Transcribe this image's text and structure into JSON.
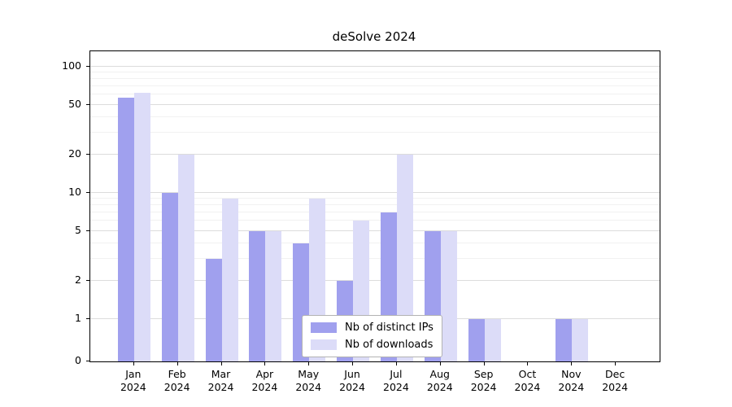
{
  "chart_data": {
    "type": "bar",
    "title": "deSolve 2024",
    "categories": [
      "Jan\n2024",
      "Feb\n2024",
      "Mar\n2024",
      "Apr\n2024",
      "May\n2024",
      "Jun\n2024",
      "Jul\n2024",
      "Aug\n2024",
      "Sep\n2024",
      "Oct\n2024",
      "Nov\n2024",
      "Dec\n2024"
    ],
    "series": [
      {
        "name": "Nb of distinct IPs",
        "color": "#a0a0ee",
        "values": [
          57,
          10,
          3,
          5,
          4,
          2,
          7,
          5,
          1,
          0,
          1,
          0
        ]
      },
      {
        "name": "Nb of downloads",
        "color": "#dcdcf8",
        "values": [
          62,
          20,
          9,
          5,
          9,
          6,
          20,
          5,
          1,
          0,
          1,
          0
        ]
      }
    ],
    "y_axis": {
      "scale": "symlog",
      "ticks": [
        0,
        1,
        2,
        5,
        10,
        20,
        50,
        100
      ],
      "minor_gridlines": [
        3,
        4,
        6,
        7,
        8,
        9,
        30,
        40,
        60,
        70,
        80,
        90
      ]
    },
    "legend": {
      "position": "lower-center"
    },
    "grid": true,
    "colors": {
      "background": "#ffffff",
      "major_gridline": "#dcdcdc",
      "minor_gridline": "#f1f1f1",
      "axis": "#000000",
      "legend_border": "#b3b3b3"
    }
  }
}
